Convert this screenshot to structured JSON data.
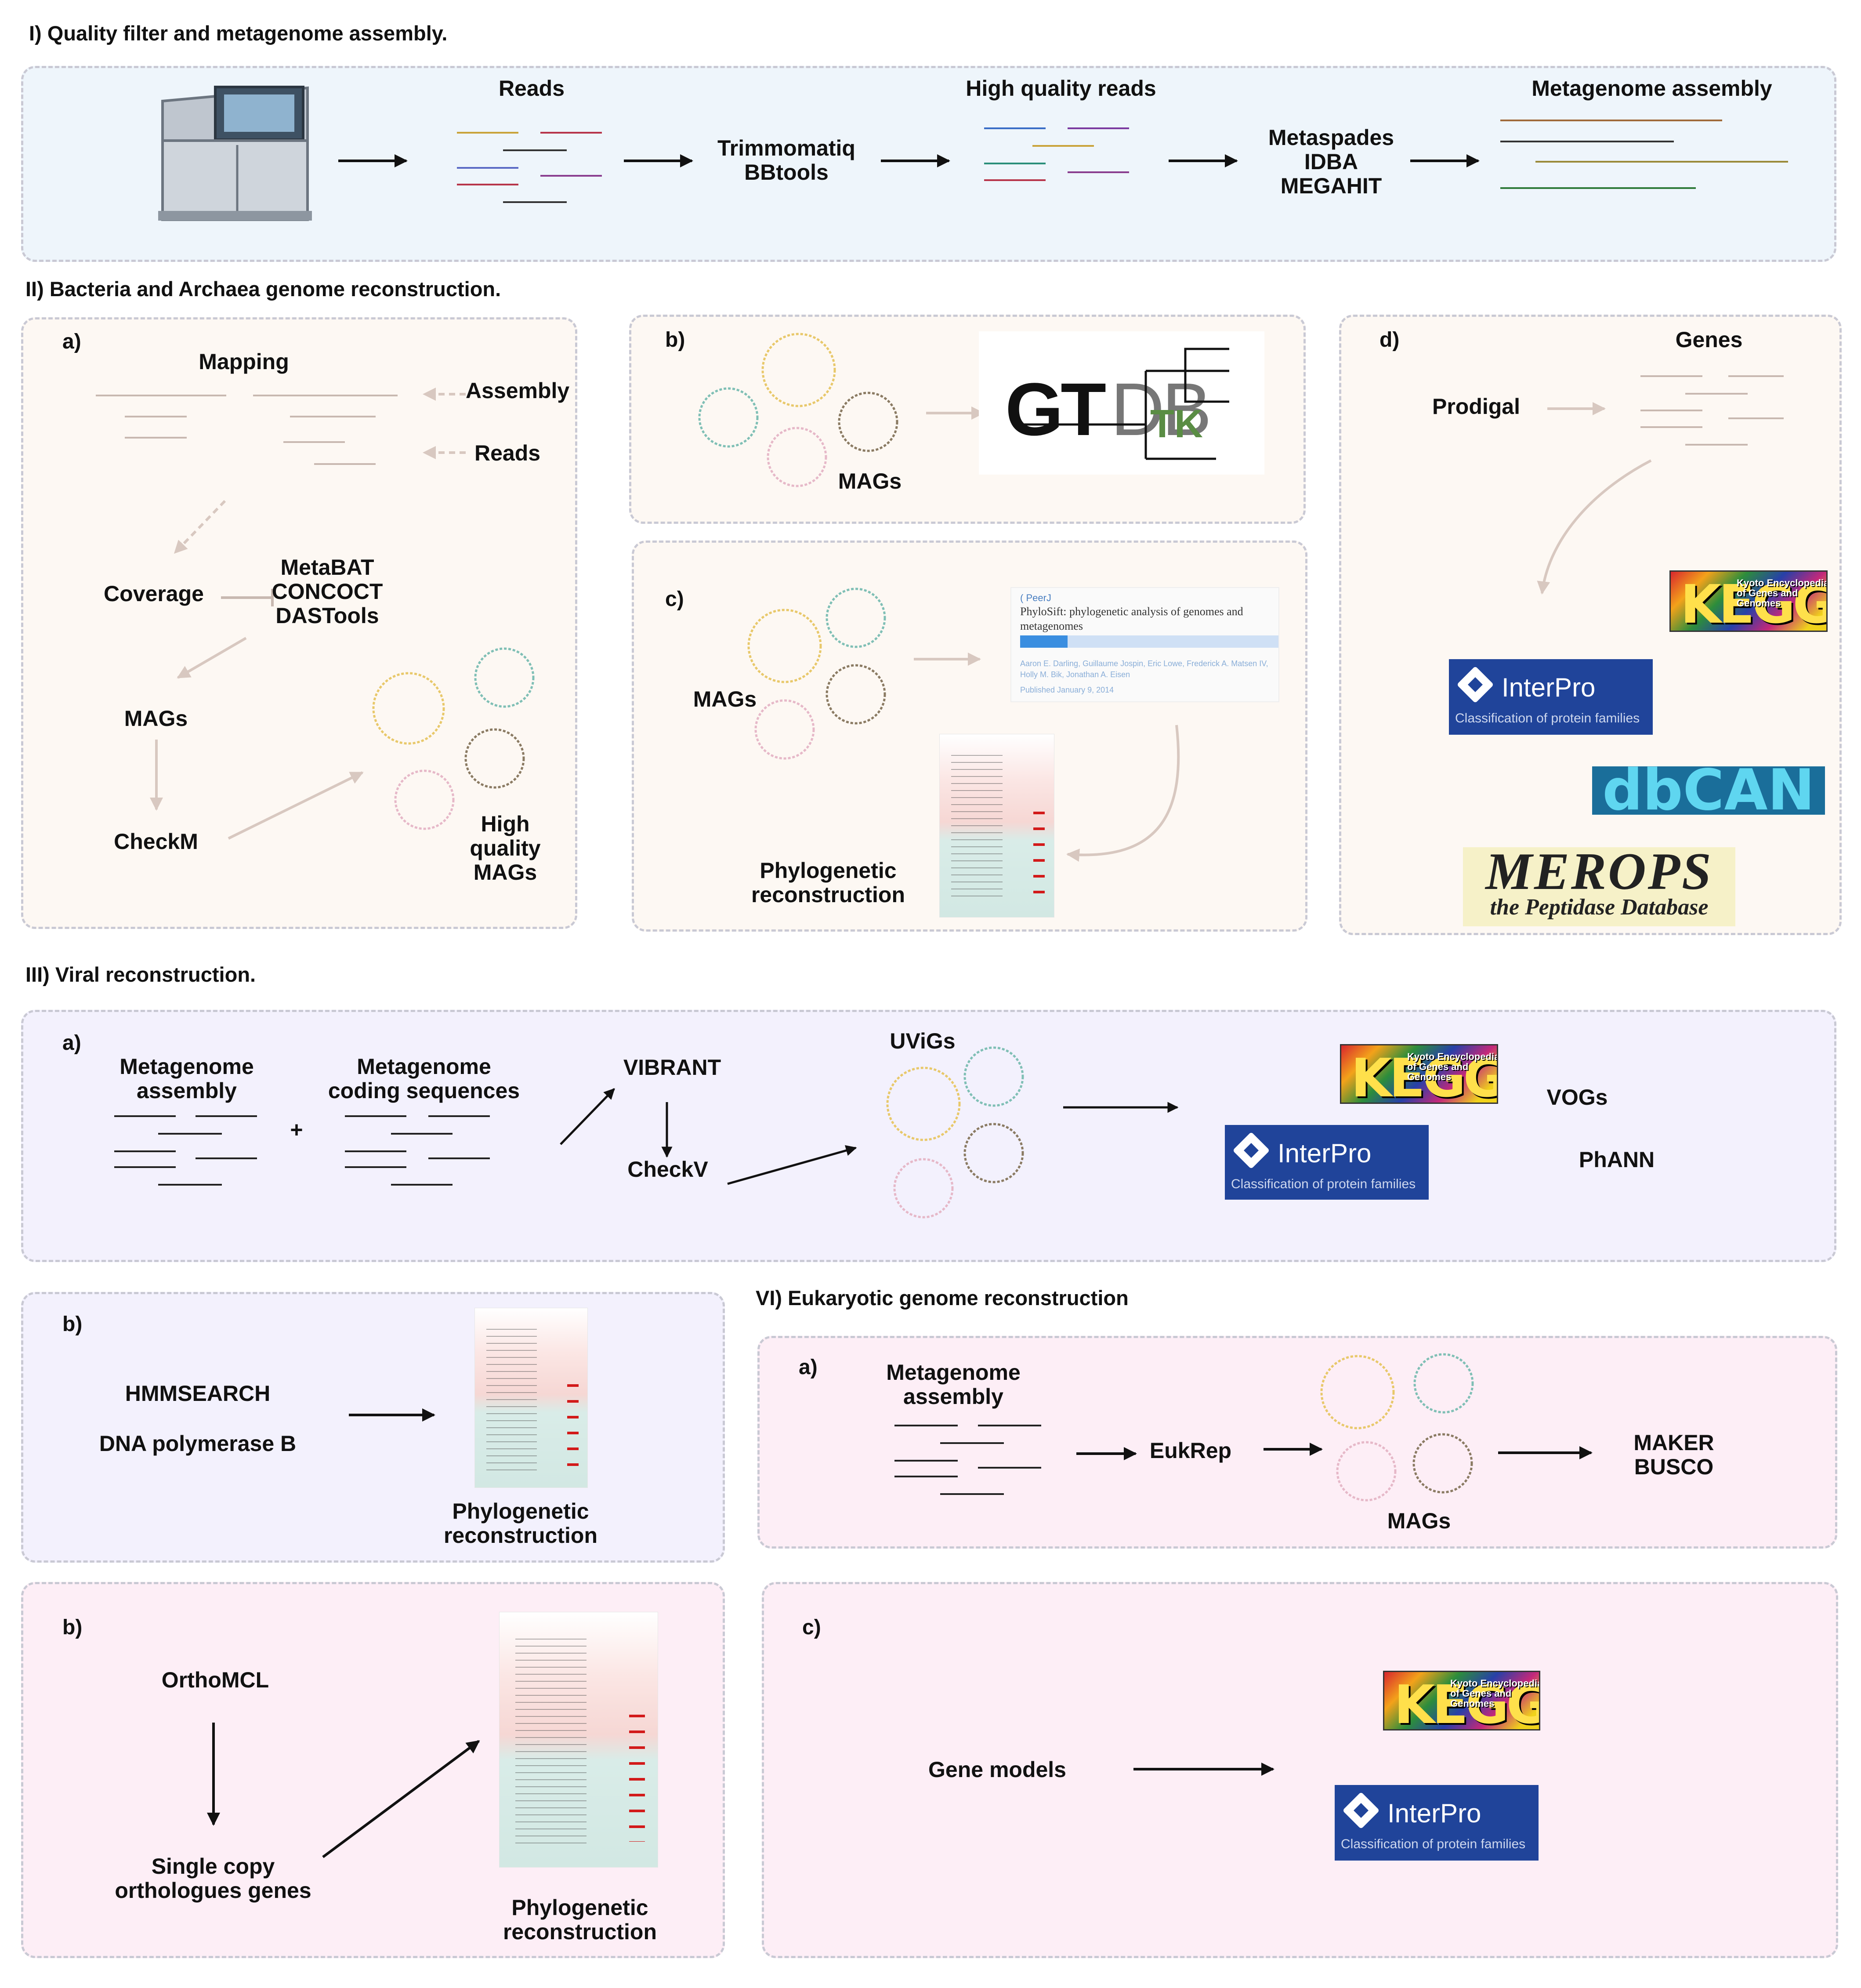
{
  "sections": {
    "s1": "I) Quality filter and metagenome assembly.",
    "s2": "II) Bacteria and Archaea genome reconstruction.",
    "s3": "III) Viral reconstruction.",
    "s6": "VI) Eukaryotic genome reconstruction"
  },
  "step1": {
    "reads": "Reads",
    "trim": "Trimmomatiq\nBBtools",
    "hq_reads": "High quality reads",
    "assemblers": "Metaspades\nIDBA\nMEGAHIT",
    "assembly": "Metagenome assembly"
  },
  "step2": {
    "a": {
      "tag": "a)",
      "mapping": "Mapping",
      "assembly": "Assembly",
      "reads": "Reads",
      "coverage": "Coverage",
      "binners": "MetaBAT\nCONCOCT\nDASTools",
      "mags": "MAGs",
      "checkm": "CheckM",
      "hq_mags": "High\nquality\nMAGs"
    },
    "b": {
      "tag": "b)",
      "mags": "MAGs",
      "gtdb": "GTDB",
      "tk": "TK"
    },
    "c": {
      "tag": "c)",
      "mags": "MAGs",
      "phylo": "Phylogenetic\nreconstruction",
      "paper_tag": "( PeerJ",
      "paper_title": "PhyloSift: phylogenetic analysis of genomes and metagenomes",
      "paper_authors": "Aaron E. Darling, Guillaume Jospin, Eric Lowe, Frederick A. Matsen IV, Holly M. Bik, Jonathan A. Eisen",
      "paper_date": "Published January 9, 2014"
    },
    "d": {
      "tag": "d)",
      "genes": "Genes",
      "prodigal": "Prodigal"
    }
  },
  "logos": {
    "kegg_mark": "KEGG",
    "kegg_sub": "Kyoto Encyclopedia of Genes and Genomes",
    "interpro": "InterPro",
    "interpro_sub": "Classification of protein families",
    "dbcan": "dbCAN",
    "merops": "MEROPS",
    "merops_sub": "the Peptidase Database"
  },
  "step3": {
    "a": {
      "tag": "a)",
      "assembly": "Metagenome\nassembly",
      "plus": "+",
      "coding": "Metagenome\ncoding sequences",
      "vibrant": "VIBRANT",
      "checkv": "CheckV",
      "uvigs": "UViGs",
      "vogs": "VOGs",
      "phann": "PhANN"
    },
    "b": {
      "tag": "b)",
      "hmm": "HMMSEARCH",
      "dnapol": "DNA polymerase B",
      "phylo": "Phylogenetic\nreconstruction"
    }
  },
  "step6": {
    "a": {
      "tag": "a)",
      "assembly": "Metagenome\nassembly",
      "eukrep": "EukRep",
      "mags": "MAGs",
      "maker": "MAKER\nBUSCO"
    },
    "b": {
      "tag": "b)",
      "orthomcl": "OrthoMCL",
      "single": "Single copy\northologues genes",
      "phylo": "Phylogenetic\nreconstruction"
    },
    "c": {
      "tag": "c)",
      "models": "Gene models"
    }
  },
  "colors": {
    "panel_blue": "#eef5fb",
    "panel_beige": "#fdf8f3",
    "panel_lavender": "#f3f1fd",
    "panel_pink": "#fdeef6",
    "mag_yellow": "#e8c86a",
    "mag_teal": "#7fbfb5",
    "mag_brown": "#8a7a62",
    "mag_pink": "#e6b8c8"
  }
}
